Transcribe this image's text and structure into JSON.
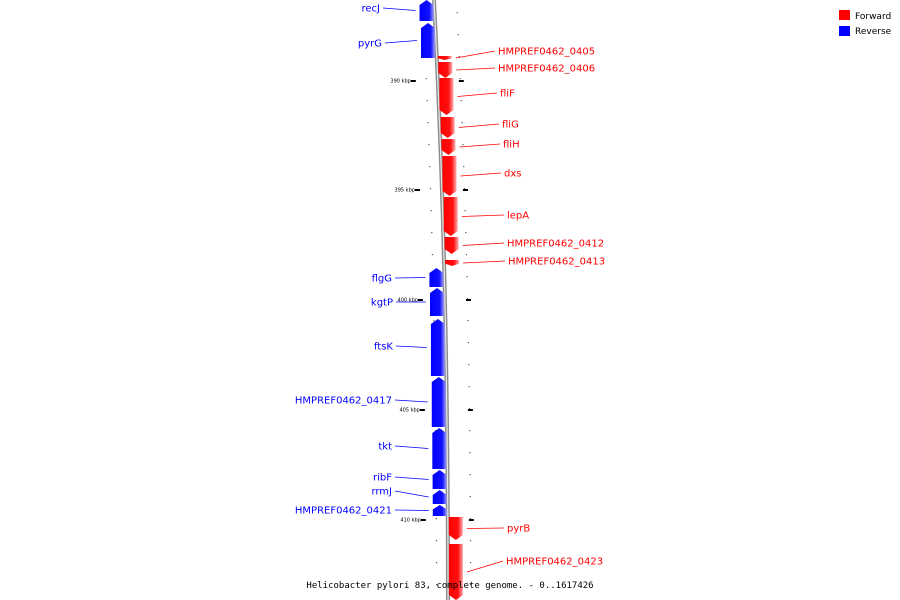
{
  "legend": {
    "items": [
      {
        "label": "Forward",
        "color": "#ff0000"
      },
      {
        "label": "Reverse",
        "color": "#0000ff"
      }
    ]
  },
  "caption": "Helicobacter pylori 83, complete genome. - 0..1617426",
  "colors": {
    "forward": "#ff0000",
    "reverse": "#0000ff",
    "backbone": "#999999"
  },
  "scale_labels": [
    "390 kbp",
    "395 kbp",
    "400 kbp",
    "405 kbp",
    "410 kbp"
  ],
  "genes": [
    {
      "label": "recJ",
      "strand": "reverse"
    },
    {
      "label": "pyrG",
      "strand": "reverse"
    },
    {
      "label": "HMPREF0462_0405",
      "strand": "forward"
    },
    {
      "label": "HMPREF0462_0406",
      "strand": "forward"
    },
    {
      "label": "fliF",
      "strand": "forward"
    },
    {
      "label": "fliG",
      "strand": "forward"
    },
    {
      "label": "fliH",
      "strand": "forward"
    },
    {
      "label": "dxs",
      "strand": "forward"
    },
    {
      "label": "lepA",
      "strand": "forward"
    },
    {
      "label": "HMPREF0462_0412",
      "strand": "forward"
    },
    {
      "label": "HMPREF0462_0413",
      "strand": "forward"
    },
    {
      "label": "flgG",
      "strand": "reverse"
    },
    {
      "label": "kgtP",
      "strand": "reverse"
    },
    {
      "label": "ftsK",
      "strand": "reverse"
    },
    {
      "label": "HMPREF0462_0417",
      "strand": "reverse"
    },
    {
      "label": "tkt",
      "strand": "reverse"
    },
    {
      "label": "ribF",
      "strand": "reverse"
    },
    {
      "label": "rrmJ",
      "strand": "reverse"
    },
    {
      "label": "HMPREF0462_0421",
      "strand": "reverse"
    },
    {
      "label": "pyrB",
      "strand": "forward"
    },
    {
      "label": "HMPREF0462_0423",
      "strand": "forward"
    }
  ]
}
